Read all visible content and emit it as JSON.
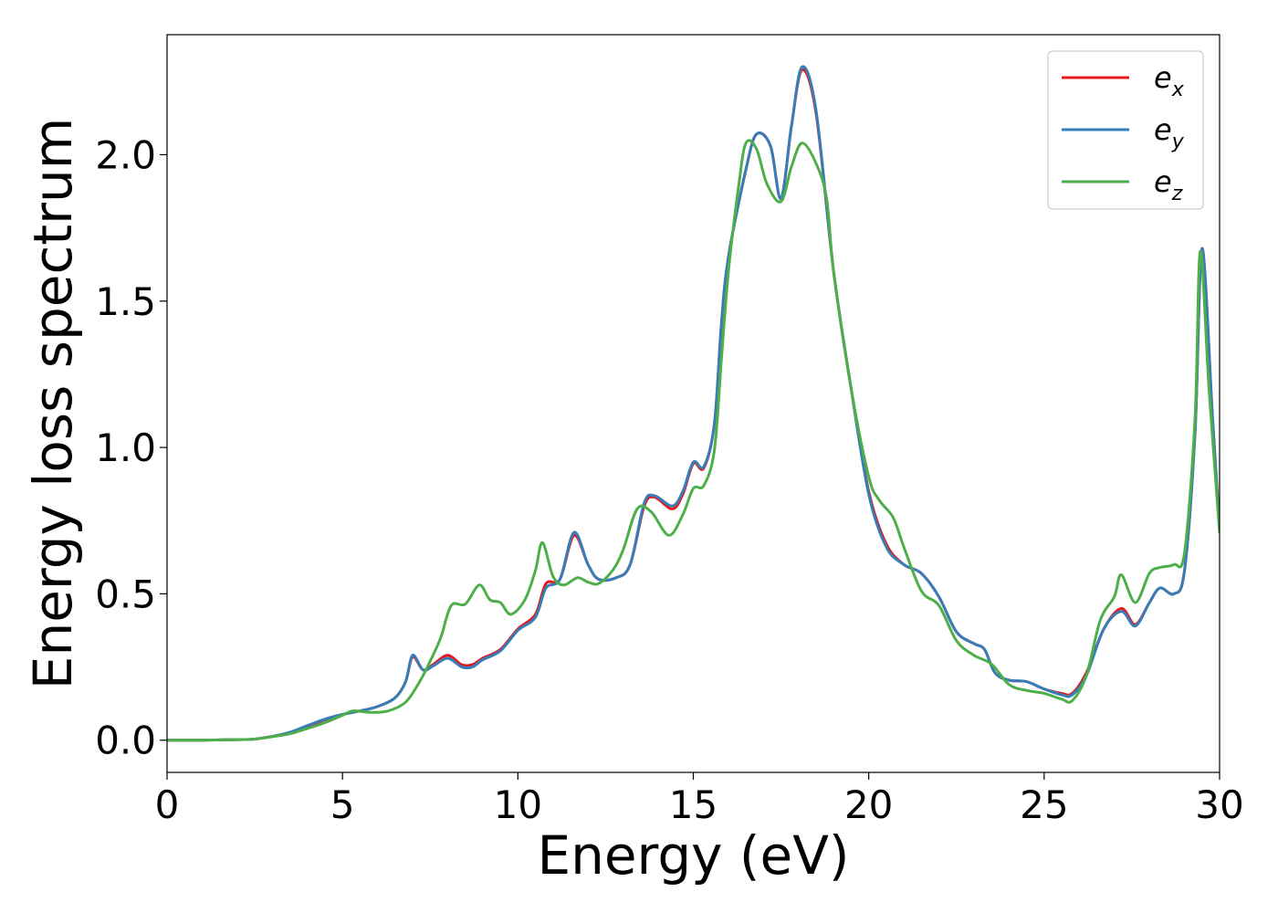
{
  "chart_data": {
    "type": "line",
    "xlabel": "Energy (eV)",
    "ylabel": "Energy loss spectrum",
    "xlim": [
      0,
      30
    ],
    "ylim": [
      -0.11,
      2.41
    ],
    "xticks": [
      0,
      5,
      10,
      15,
      20,
      25,
      30
    ],
    "xtick_labels": [
      "0",
      "5",
      "10",
      "15",
      "20",
      "25",
      "30"
    ],
    "yticks": [
      0.0,
      0.5,
      1.0,
      1.5,
      2.0
    ],
    "ytick_labels": [
      "0.0",
      "0.5",
      "1.0",
      "1.5",
      "2.0"
    ],
    "grid": false,
    "legend_position": "top-right",
    "series": [
      {
        "legend_base": "e",
        "legend_sub": "x",
        "color": "#e41a1c",
        "points": [
          [
            0,
            0
          ],
          [
            1,
            0
          ],
          [
            2,
            0.002
          ],
          [
            2.5,
            0.004
          ],
          [
            3,
            0.013
          ],
          [
            3.5,
            0.025
          ],
          [
            4,
            0.047
          ],
          [
            4.5,
            0.07
          ],
          [
            5,
            0.088
          ],
          [
            5.5,
            0.1
          ],
          [
            6,
            0.115
          ],
          [
            6.5,
            0.145
          ],
          [
            6.8,
            0.2
          ],
          [
            7,
            0.285
          ],
          [
            7.3,
            0.24
          ],
          [
            7.6,
            0.26
          ],
          [
            8,
            0.29
          ],
          [
            8.4,
            0.258
          ],
          [
            8.7,
            0.258
          ],
          [
            9,
            0.28
          ],
          [
            9.5,
            0.31
          ],
          [
            10,
            0.38
          ],
          [
            10.5,
            0.43
          ],
          [
            10.8,
            0.535
          ],
          [
            11.2,
            0.55
          ],
          [
            11.6,
            0.7
          ],
          [
            12,
            0.6
          ],
          [
            12.3,
            0.55
          ],
          [
            12.8,
            0.555
          ],
          [
            13.2,
            0.6
          ],
          [
            13.6,
            0.8
          ],
          [
            13.9,
            0.83
          ],
          [
            14.4,
            0.79
          ],
          [
            14.7,
            0.84
          ],
          [
            15,
            0.945
          ],
          [
            15.3,
            0.93
          ],
          [
            15.6,
            1.08
          ],
          [
            15.8,
            1.42
          ],
          [
            16,
            1.65
          ],
          [
            16.5,
            1.95
          ],
          [
            16.8,
            2.07
          ],
          [
            17.2,
            2.03
          ],
          [
            17.5,
            1.85
          ],
          [
            17.8,
            2.1
          ],
          [
            18.1,
            2.29
          ],
          [
            18.5,
            2.14
          ],
          [
            19,
            1.6
          ],
          [
            19.5,
            1.2
          ],
          [
            20,
            0.85
          ],
          [
            20.5,
            0.67
          ],
          [
            21,
            0.6
          ],
          [
            21.5,
            0.57
          ],
          [
            22,
            0.49
          ],
          [
            22.5,
            0.37
          ],
          [
            23,
            0.33
          ],
          [
            23.3,
            0.31
          ],
          [
            23.6,
            0.23
          ],
          [
            24,
            0.205
          ],
          [
            24.5,
            0.2
          ],
          [
            25,
            0.175
          ],
          [
            25.5,
            0.16
          ],
          [
            25.8,
            0.16
          ],
          [
            26.2,
            0.23
          ],
          [
            26.7,
            0.38
          ],
          [
            27.2,
            0.45
          ],
          [
            27.6,
            0.395
          ],
          [
            28,
            0.47
          ],
          [
            28.3,
            0.52
          ],
          [
            28.7,
            0.5
          ],
          [
            29,
            0.58
          ],
          [
            29.3,
            1.05
          ],
          [
            29.5,
            1.68
          ],
          [
            29.8,
            1.1
          ],
          [
            30,
            0.72
          ]
        ]
      },
      {
        "legend_base": "e",
        "legend_sub": "y",
        "color": "#377eb8",
        "points": [
          [
            0,
            0
          ],
          [
            1,
            0
          ],
          [
            2,
            0.002
          ],
          [
            2.5,
            0.004
          ],
          [
            3,
            0.013
          ],
          [
            3.5,
            0.027
          ],
          [
            4,
            0.05
          ],
          [
            4.5,
            0.072
          ],
          [
            5,
            0.088
          ],
          [
            5.5,
            0.1
          ],
          [
            6,
            0.115
          ],
          [
            6.5,
            0.145
          ],
          [
            6.8,
            0.2
          ],
          [
            7,
            0.29
          ],
          [
            7.3,
            0.24
          ],
          [
            7.6,
            0.255
          ],
          [
            8,
            0.28
          ],
          [
            8.4,
            0.25
          ],
          [
            8.7,
            0.25
          ],
          [
            9,
            0.275
          ],
          [
            9.5,
            0.305
          ],
          [
            10,
            0.375
          ],
          [
            10.5,
            0.42
          ],
          [
            10.8,
            0.52
          ],
          [
            11.2,
            0.55
          ],
          [
            11.6,
            0.71
          ],
          [
            12,
            0.6
          ],
          [
            12.3,
            0.55
          ],
          [
            12.8,
            0.555
          ],
          [
            13.2,
            0.6
          ],
          [
            13.6,
            0.81
          ],
          [
            13.9,
            0.835
          ],
          [
            14.4,
            0.8
          ],
          [
            14.7,
            0.85
          ],
          [
            15,
            0.95
          ],
          [
            15.3,
            0.935
          ],
          [
            15.6,
            1.08
          ],
          [
            15.8,
            1.42
          ],
          [
            16,
            1.65
          ],
          [
            16.5,
            1.95
          ],
          [
            16.8,
            2.07
          ],
          [
            17.2,
            2.03
          ],
          [
            17.5,
            1.85
          ],
          [
            17.8,
            2.1
          ],
          [
            18.1,
            2.3
          ],
          [
            18.5,
            2.15
          ],
          [
            19,
            1.6
          ],
          [
            19.5,
            1.2
          ],
          [
            20,
            0.84
          ],
          [
            20.5,
            0.66
          ],
          [
            21,
            0.6
          ],
          [
            21.5,
            0.57
          ],
          [
            22,
            0.49
          ],
          [
            22.5,
            0.37
          ],
          [
            23,
            0.33
          ],
          [
            23.3,
            0.31
          ],
          [
            23.6,
            0.23
          ],
          [
            24,
            0.205
          ],
          [
            24.5,
            0.2
          ],
          [
            25,
            0.175
          ],
          [
            25.5,
            0.155
          ],
          [
            25.8,
            0.155
          ],
          [
            26.2,
            0.22
          ],
          [
            26.7,
            0.38
          ],
          [
            27.2,
            0.44
          ],
          [
            27.6,
            0.39
          ],
          [
            28,
            0.47
          ],
          [
            28.3,
            0.52
          ],
          [
            28.7,
            0.5
          ],
          [
            29,
            0.58
          ],
          [
            29.3,
            1.05
          ],
          [
            29.5,
            1.68
          ],
          [
            29.8,
            1.1
          ],
          [
            30,
            0.72
          ]
        ]
      },
      {
        "legend_base": "e",
        "legend_sub": "z",
        "color": "#4daf4a",
        "points": [
          [
            0,
            0
          ],
          [
            1,
            0
          ],
          [
            2,
            0.002
          ],
          [
            2.5,
            0.004
          ],
          [
            3,
            0.012
          ],
          [
            3.5,
            0.022
          ],
          [
            4,
            0.04
          ],
          [
            4.5,
            0.06
          ],
          [
            5,
            0.085
          ],
          [
            5.3,
            0.1
          ],
          [
            5.8,
            0.095
          ],
          [
            6.3,
            0.1
          ],
          [
            6.8,
            0.13
          ],
          [
            7.2,
            0.2
          ],
          [
            7.5,
            0.27
          ],
          [
            7.8,
            0.35
          ],
          [
            8.1,
            0.46
          ],
          [
            8.5,
            0.465
          ],
          [
            8.9,
            0.53
          ],
          [
            9.2,
            0.48
          ],
          [
            9.5,
            0.47
          ],
          [
            9.8,
            0.43
          ],
          [
            10.2,
            0.48
          ],
          [
            10.5,
            0.58
          ],
          [
            10.7,
            0.675
          ],
          [
            11,
            0.56
          ],
          [
            11.3,
            0.53
          ],
          [
            11.7,
            0.555
          ],
          [
            12,
            0.54
          ],
          [
            12.3,
            0.535
          ],
          [
            12.7,
            0.58
          ],
          [
            13,
            0.65
          ],
          [
            13.4,
            0.79
          ],
          [
            13.8,
            0.78
          ],
          [
            14.3,
            0.7
          ],
          [
            14.7,
            0.77
          ],
          [
            15,
            0.86
          ],
          [
            15.3,
            0.87
          ],
          [
            15.6,
            0.99
          ],
          [
            15.8,
            1.3
          ],
          [
            16,
            1.6
          ],
          [
            16.3,
            1.9
          ],
          [
            16.5,
            2.04
          ],
          [
            16.8,
            2.02
          ],
          [
            17.1,
            1.9
          ],
          [
            17.5,
            1.84
          ],
          [
            17.8,
            1.96
          ],
          [
            18.1,
            2.04
          ],
          [
            18.5,
            1.97
          ],
          [
            18.8,
            1.85
          ],
          [
            19,
            1.6
          ],
          [
            19.5,
            1.2
          ],
          [
            20,
            0.9
          ],
          [
            20.3,
            0.82
          ],
          [
            20.7,
            0.76
          ],
          [
            21,
            0.66
          ],
          [
            21.5,
            0.51
          ],
          [
            22,
            0.46
          ],
          [
            22.5,
            0.34
          ],
          [
            23,
            0.29
          ],
          [
            23.5,
            0.26
          ],
          [
            24,
            0.19
          ],
          [
            24.5,
            0.17
          ],
          [
            25,
            0.16
          ],
          [
            25.5,
            0.14
          ],
          [
            25.8,
            0.135
          ],
          [
            26.2,
            0.22
          ],
          [
            26.6,
            0.41
          ],
          [
            27,
            0.49
          ],
          [
            27.2,
            0.565
          ],
          [
            27.6,
            0.47
          ],
          [
            28,
            0.57
          ],
          [
            28.3,
            0.59
          ],
          [
            28.7,
            0.6
          ],
          [
            29,
            0.64
          ],
          [
            29.3,
            1.1
          ],
          [
            29.45,
            1.67
          ],
          [
            29.7,
            1.2
          ],
          [
            30,
            0.71
          ]
        ]
      }
    ]
  }
}
